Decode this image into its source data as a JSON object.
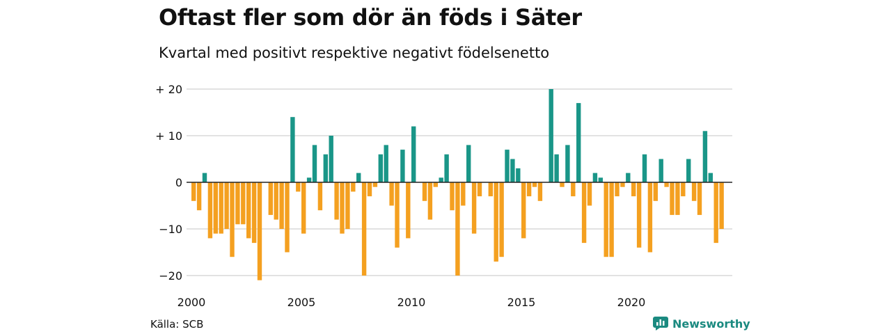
{
  "title": "Oftast fler som dör än föds i Säter",
  "subtitle": "Kvartal med positivt respektive negativt födelsenetto",
  "source": "Källa: SCB",
  "brand": "Newsworthy",
  "colors": {
    "positive": "#1a9688",
    "negative": "#f4a020",
    "grid": "#d9d9d9",
    "zero": "#222222"
  },
  "chart_data": {
    "type": "bar",
    "start_year": 2000,
    "x_ticks": [
      2000,
      2005,
      2010,
      2015,
      2020
    ],
    "y_ticks": [
      {
        "value": 20,
        "label": "+ 20"
      },
      {
        "value": 10,
        "label": "+ 10"
      },
      {
        "value": 0,
        "label": "0"
      },
      {
        "value": -10,
        "label": "−10"
      },
      {
        "value": -20,
        "label": "−20"
      }
    ],
    "ylim": [
      -21,
      20
    ],
    "values": [
      -4,
      -6,
      2,
      -12,
      -11,
      -11,
      -10,
      -16,
      -9,
      -9,
      -12,
      -13,
      -21,
      0,
      -7,
      -8,
      -10,
      -15,
      14,
      -2,
      -11,
      1,
      8,
      -6,
      6,
      10,
      -8,
      -11,
      -10,
      -2,
      2,
      -20,
      -3,
      -1,
      6,
      8,
      -5,
      -14,
      7,
      -12,
      12,
      0,
      -4,
      -8,
      -1,
      1,
      6,
      -6,
      -20,
      -5,
      8,
      -11,
      -3,
      0,
      -3,
      -17,
      -16,
      7,
      5,
      3,
      -12,
      -3,
      -1,
      -4,
      0,
      20,
      6,
      -1,
      8,
      -3,
      17,
      -13,
      -5,
      2,
      1,
      -16,
      -16,
      -3,
      -1,
      2,
      -3,
      -14,
      6,
      -15,
      -4,
      5,
      -1,
      -7,
      -7,
      -3,
      5,
      -4,
      -7,
      11,
      2,
      -13,
      -10
    ]
  }
}
